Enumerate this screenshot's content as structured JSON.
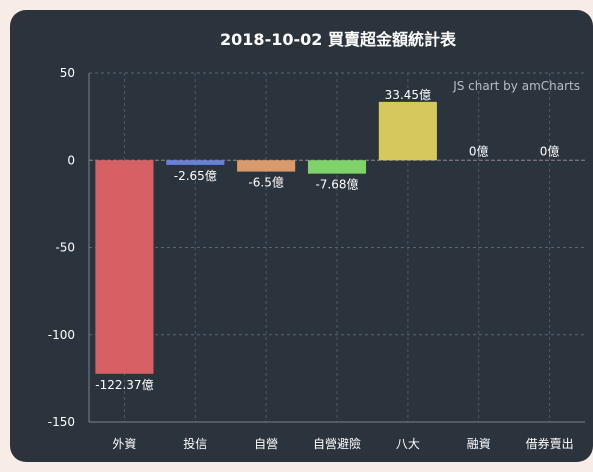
{
  "chart_data": {
    "type": "bar",
    "title": "2018-10-02 買賣超金額統計表",
    "credit": "JS chart by amCharts",
    "categories": [
      "外資",
      "投信",
      "自營",
      "自營避險",
      "八大",
      "融資",
      "借券賣出"
    ],
    "values": [
      -122.37,
      -2.65,
      -6.5,
      -7.68,
      33.45,
      0,
      0
    ],
    "value_labels": [
      "-122.37億",
      "-2.65億",
      "-6.5億",
      "-7.68億",
      "33.45億",
      "0億",
      "0億"
    ],
    "colors": [
      "#d66164",
      "#6a7fdb",
      "#d99a6c",
      "#7fd36a",
      "#d7c85e",
      "#c8a878",
      "#a0a0a0"
    ],
    "ylim": [
      -150,
      50
    ],
    "yticks": [
      50,
      0,
      -50,
      -100,
      -150
    ],
    "grid": true,
    "xlabel": "",
    "ylabel": ""
  }
}
